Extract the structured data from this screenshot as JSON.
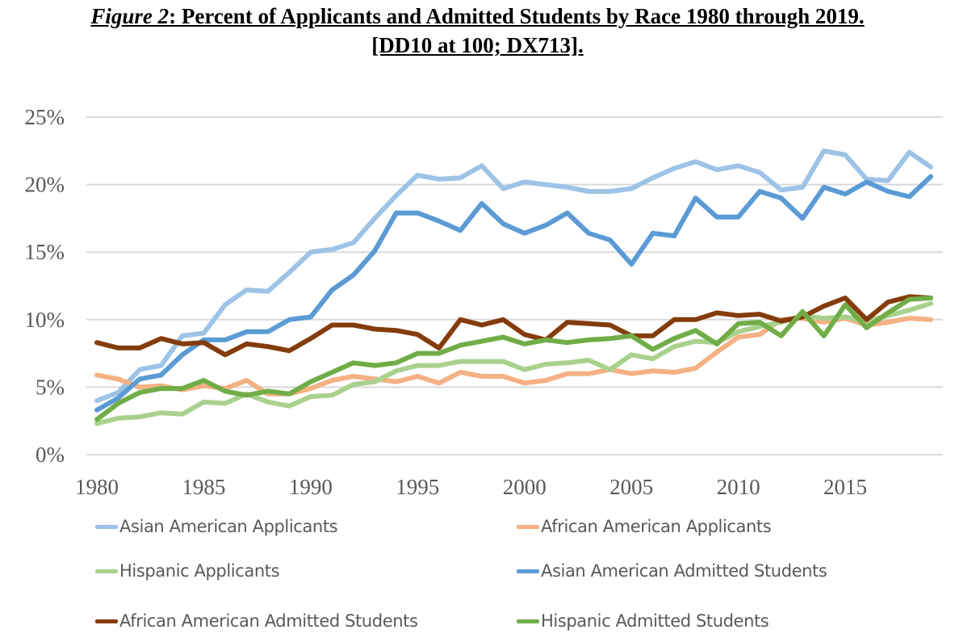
{
  "title": {
    "figure_label": "Figure 2",
    "text": ": Percent of Applicants and Admitted Students by Race 1980 through 2019.",
    "line2": "[DD10 at 100; DX713]."
  },
  "chart_data": {
    "type": "line",
    "title": "Figure 2: Percent of Applicants and Admitted Students by Race 1980 through 2019. [DD10 at 100; DX713].",
    "xlabel": "",
    "ylabel": "",
    "x": [
      1980,
      1981,
      1982,
      1983,
      1984,
      1985,
      1986,
      1987,
      1988,
      1989,
      1990,
      1991,
      1992,
      1993,
      1994,
      1995,
      1996,
      1997,
      1998,
      1999,
      2000,
      2001,
      2002,
      2003,
      2004,
      2005,
      2006,
      2007,
      2008,
      2009,
      2010,
      2011,
      2012,
      2013,
      2014,
      2015,
      2016,
      2017,
      2018,
      2019
    ],
    "xlim": [
      1980,
      2019
    ],
    "ylim": [
      0,
      25
    ],
    "x_ticks": [
      1980,
      1985,
      1990,
      1995,
      2000,
      2005,
      2010,
      2015
    ],
    "x_tick_labels": [
      "1980",
      "1985",
      "1990",
      "1995",
      "2000",
      "2005",
      "2010",
      "2015"
    ],
    "y_ticks": [
      0,
      5,
      10,
      15,
      20,
      25
    ],
    "y_tick_labels": [
      "0%",
      "5%",
      "10%",
      "15%",
      "20%",
      "25%"
    ],
    "grid": "horizontal",
    "legend_position": "bottom",
    "series": [
      {
        "name": "Asian American Applicants",
        "color": "#9dc3e6",
        "values": [
          4.0,
          4.6,
          6.3,
          6.6,
          8.8,
          9.0,
          11.1,
          12.2,
          12.1,
          13.5,
          15.0,
          15.2,
          15.7,
          17.5,
          19.2,
          20.7,
          20.4,
          20.5,
          21.4,
          19.7,
          20.2,
          20.0,
          19.8,
          19.5,
          19.5,
          19.7,
          20.5,
          21.2,
          21.7,
          21.1,
          21.4,
          20.9,
          19.6,
          19.8,
          22.5,
          22.2,
          20.4,
          20.3,
          22.4,
          21.3
        ]
      },
      {
        "name": "African American Applicants",
        "color": "#f4b183",
        "values": [
          5.9,
          5.6,
          5.0,
          5.1,
          4.8,
          5.1,
          4.9,
          5.5,
          4.5,
          4.5,
          4.9,
          5.5,
          5.8,
          5.6,
          5.4,
          5.8,
          5.3,
          6.1,
          5.8,
          5.8,
          5.3,
          5.5,
          6.0,
          6.0,
          6.3,
          6.0,
          6.2,
          6.1,
          6.4,
          7.6,
          8.7,
          8.9,
          10.0,
          10.1,
          9.8,
          10.1,
          9.6,
          9.8,
          10.1,
          10.0
        ]
      },
      {
        "name": "Hispanic Applicants",
        "color": "#a9d18e",
        "values": [
          2.3,
          2.7,
          2.8,
          3.1,
          3.0,
          3.9,
          3.8,
          4.5,
          3.9,
          3.6,
          4.3,
          4.4,
          5.2,
          5.4,
          6.2,
          6.6,
          6.6,
          6.9,
          6.9,
          6.9,
          6.3,
          6.7,
          6.8,
          7.0,
          6.3,
          7.4,
          7.1,
          8.0,
          8.4,
          8.3,
          9.1,
          9.5,
          9.8,
          10.3,
          10.1,
          10.2,
          9.9,
          10.3,
          10.7,
          11.2
        ]
      },
      {
        "name": "Asian American Admitted Students",
        "color": "#5b9bd5",
        "values": [
          3.3,
          4.2,
          5.6,
          5.9,
          7.4,
          8.5,
          8.5,
          9.1,
          9.1,
          10.0,
          10.2,
          12.2,
          13.3,
          15.1,
          17.9,
          17.9,
          17.3,
          16.6,
          18.6,
          17.1,
          16.4,
          17.0,
          17.9,
          16.4,
          15.9,
          14.1,
          16.4,
          16.2,
          19.0,
          17.6,
          17.6,
          19.5,
          19.0,
          17.5,
          19.8,
          19.3,
          20.2,
          19.5,
          19.1,
          20.6
        ]
      },
      {
        "name": "African American Admitted Students",
        "color": "#843c0c",
        "values": [
          8.3,
          7.9,
          7.9,
          8.6,
          8.2,
          8.3,
          7.4,
          8.2,
          8.0,
          7.7,
          8.6,
          9.6,
          9.6,
          9.3,
          9.2,
          8.9,
          7.9,
          10.0,
          9.6,
          10.0,
          8.9,
          8.5,
          9.8,
          9.7,
          9.6,
          8.8,
          8.8,
          10.0,
          10.0,
          10.5,
          10.3,
          10.4,
          9.9,
          10.2,
          11.0,
          11.6,
          10.0,
          11.3,
          11.7,
          11.6
        ]
      },
      {
        "name": "Hispanic Admitted Students",
        "color": "#70ad47",
        "values": [
          2.6,
          3.8,
          4.6,
          4.9,
          4.9,
          5.5,
          4.7,
          4.4,
          4.7,
          4.5,
          5.4,
          6.1,
          6.8,
          6.6,
          6.8,
          7.5,
          7.5,
          8.1,
          8.4,
          8.7,
          8.2,
          8.5,
          8.3,
          8.5,
          8.6,
          8.8,
          7.8,
          8.6,
          9.2,
          8.2,
          9.7,
          9.8,
          8.8,
          10.6,
          8.8,
          11.1,
          9.4,
          10.5,
          11.5,
          11.6
        ]
      }
    ]
  },
  "legend": {
    "items": [
      {
        "label": "Asian American Applicants",
        "color": "#9dc3e6"
      },
      {
        "label": "African American Applicants",
        "color": "#f4b183"
      },
      {
        "label": "Hispanic Applicants",
        "color": "#a9d18e"
      },
      {
        "label": "Asian American Admitted Students",
        "color": "#5b9bd5"
      },
      {
        "label": "African American Admitted Students",
        "color": "#843c0c"
      },
      {
        "label": "Hispanic Admitted Students",
        "color": "#70ad47"
      }
    ]
  }
}
